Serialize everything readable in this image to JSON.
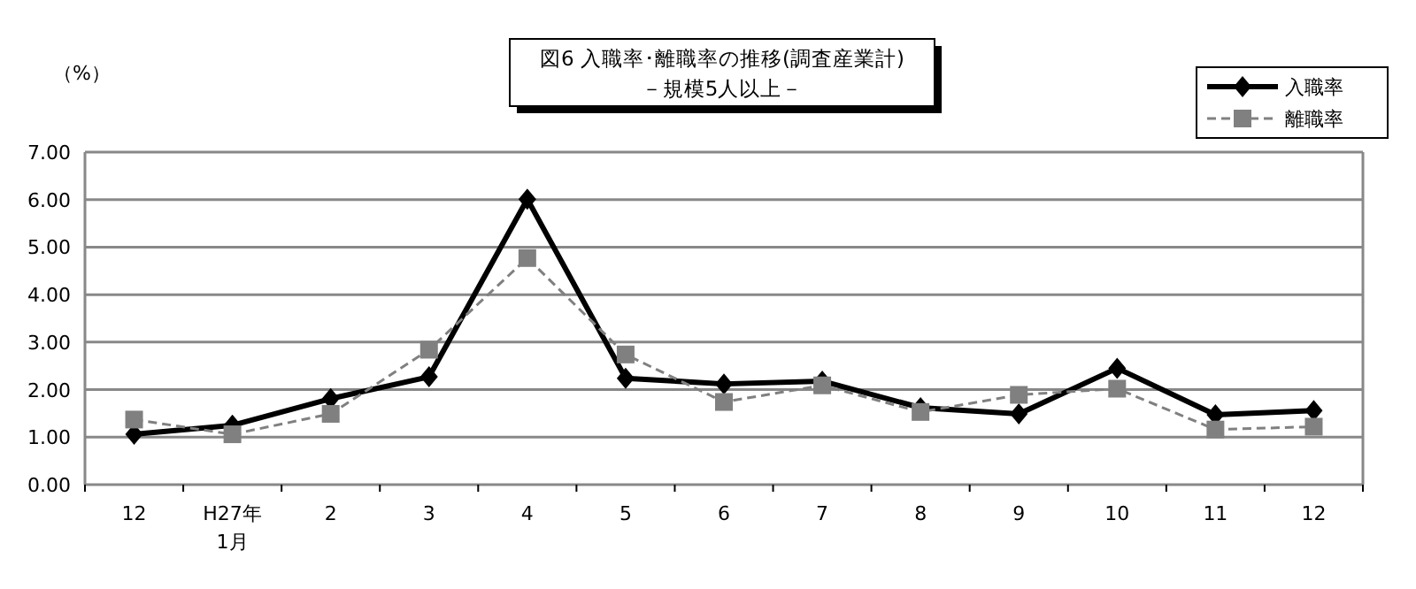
{
  "chart_data": {
    "type": "line",
    "title": "図6  入職率･離職率の推移(調査産業計)",
    "subtitle": "－規模5人以上－",
    "ylabel": "（%）",
    "categories": [
      "12",
      "H27年\n1月",
      "2",
      "3",
      "4",
      "5",
      "6",
      "7",
      "8",
      "9",
      "10",
      "11",
      "12"
    ],
    "series": [
      {
        "name": "入職率",
        "color": "#000000",
        "marker": "diamond",
        "line_style": "solid",
        "values": [
          1.06,
          1.25,
          1.81,
          2.27,
          6.01,
          2.24,
          2.12,
          2.18,
          1.62,
          1.49,
          2.45,
          1.47,
          1.56
        ]
      },
      {
        "name": "離職率",
        "color": "#808080",
        "marker": "square",
        "line_style": "dashed",
        "values": [
          1.37,
          1.06,
          1.49,
          2.84,
          4.77,
          2.74,
          1.74,
          2.09,
          1.53,
          1.89,
          2.02,
          1.16,
          1.22
        ]
      }
    ],
    "ylim": [
      0,
      7
    ],
    "yticks": [
      {
        "value": 0,
        "label": "0.00"
      },
      {
        "value": 1,
        "label": "1.00"
      },
      {
        "value": 2,
        "label": "2.00"
      },
      {
        "value": 3,
        "label": "3.00"
      },
      {
        "value": 4,
        "label": "4.00"
      },
      {
        "value": 5,
        "label": "5.00"
      },
      {
        "value": 6,
        "label": "6.00"
      },
      {
        "value": 7,
        "label": "7.00"
      }
    ],
    "grid": "y",
    "legend": "top right"
  }
}
